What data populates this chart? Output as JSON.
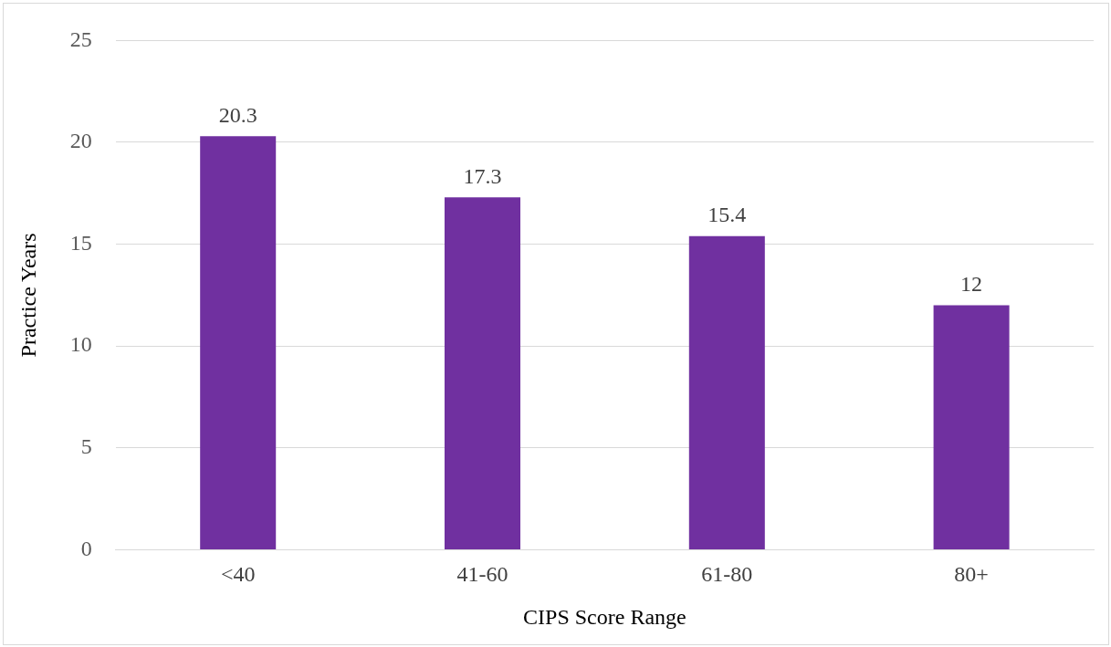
{
  "chart_data": {
    "type": "bar",
    "xlabel": "CIPS Score Range",
    "ylabel": "Practice Years",
    "categories": [
      "<40",
      "41-60",
      "61-80",
      "80+"
    ],
    "values": [
      20.3,
      17.3,
      15.4,
      12
    ],
    "color": "#7030a0",
    "ylim": [
      0,
      25
    ],
    "yticks": [
      0,
      5,
      10,
      15,
      20,
      25
    ],
    "grid": "y",
    "data_labels": true,
    "legend": false
  }
}
